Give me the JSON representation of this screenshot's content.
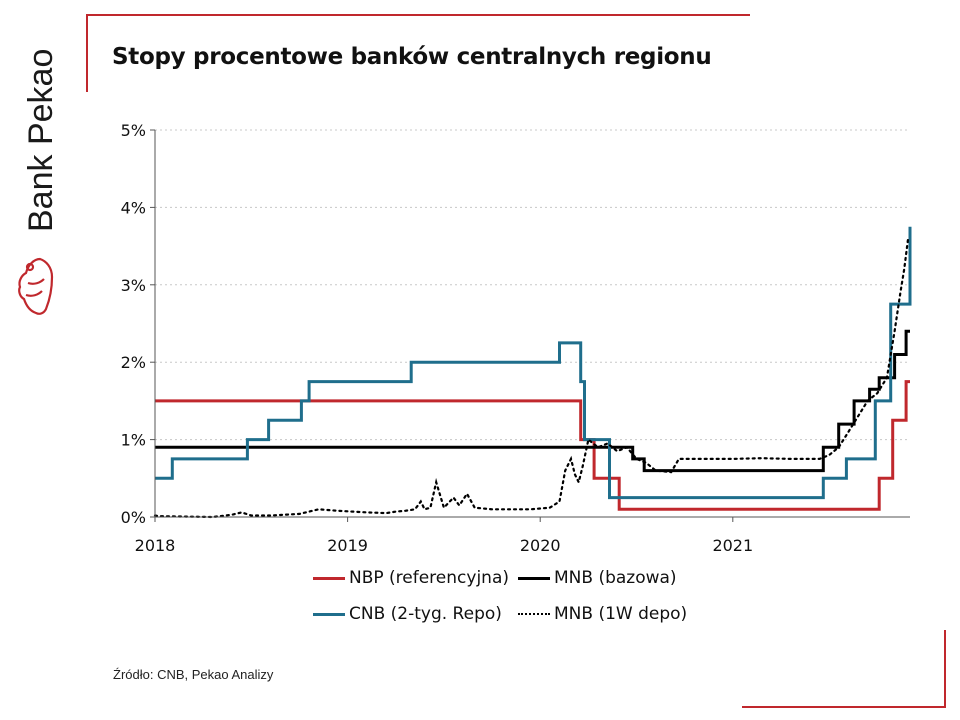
{
  "brand": {
    "name": "Bank Pekao",
    "color": "#c0282d"
  },
  "source": "Źródło: CNB, Pekao Analizy",
  "chart_data": {
    "type": "line",
    "title": "Stopy procentowe banków centralnych regionu",
    "xlabel": "",
    "ylabel": "",
    "x_ticks": [
      "2018",
      "2019",
      "2020",
      "2021"
    ],
    "x_range": [
      2018.0,
      2021.92
    ],
    "y_ticks": [
      "0%",
      "1%",
      "2%",
      "3%",
      "4%",
      "5%"
    ],
    "ylim": [
      0,
      5
    ],
    "grid": "horizontal dotted",
    "legend_position": "bottom",
    "series": [
      {
        "name": "NBP (referencyjna)",
        "color": "#c0282d",
        "style": "solid",
        "points": [
          [
            2018.0,
            1.5
          ],
          [
            2020.21,
            1.5
          ],
          [
            2020.21,
            1.0
          ],
          [
            2020.28,
            1.0
          ],
          [
            2020.28,
            0.5
          ],
          [
            2020.41,
            0.5
          ],
          [
            2020.41,
            0.1
          ],
          [
            2021.76,
            0.1
          ],
          [
            2021.76,
            0.5
          ],
          [
            2021.83,
            0.5
          ],
          [
            2021.83,
            1.25
          ],
          [
            2021.9,
            1.25
          ],
          [
            2021.9,
            1.75
          ],
          [
            2021.92,
            1.75
          ]
        ]
      },
      {
        "name": "MNB (bazowa)",
        "color": "#000000",
        "style": "solid",
        "points": [
          [
            2018.0,
            0.9
          ],
          [
            2020.48,
            0.9
          ],
          [
            2020.48,
            0.75
          ],
          [
            2020.54,
            0.75
          ],
          [
            2020.54,
            0.6
          ],
          [
            2021.47,
            0.6
          ],
          [
            2021.47,
            0.9
          ],
          [
            2021.55,
            0.9
          ],
          [
            2021.55,
            1.2
          ],
          [
            2021.63,
            1.2
          ],
          [
            2021.63,
            1.5
          ],
          [
            2021.71,
            1.5
          ],
          [
            2021.71,
            1.65
          ],
          [
            2021.76,
            1.65
          ],
          [
            2021.76,
            1.8
          ],
          [
            2021.84,
            1.8
          ],
          [
            2021.84,
            2.1
          ],
          [
            2021.9,
            2.1
          ],
          [
            2021.9,
            2.4
          ],
          [
            2021.92,
            2.4
          ]
        ]
      },
      {
        "name": "CNB (2-tyg. Repo)",
        "color": "#1f6e8c",
        "style": "solid",
        "points": [
          [
            2018.0,
            0.5
          ],
          [
            2018.09,
            0.5
          ],
          [
            2018.09,
            0.75
          ],
          [
            2018.48,
            0.75
          ],
          [
            2018.48,
            1.0
          ],
          [
            2018.59,
            1.0
          ],
          [
            2018.59,
            1.25
          ],
          [
            2018.76,
            1.25
          ],
          [
            2018.76,
            1.5
          ],
          [
            2018.8,
            1.5
          ],
          [
            2018.8,
            1.75
          ],
          [
            2019.33,
            1.75
          ],
          [
            2019.33,
            2.0
          ],
          [
            2020.1,
            2.0
          ],
          [
            2020.1,
            2.25
          ],
          [
            2020.21,
            2.25
          ],
          [
            2020.21,
            1.75
          ],
          [
            2020.23,
            1.75
          ],
          [
            2020.23,
            1.0
          ],
          [
            2020.36,
            1.0
          ],
          [
            2020.36,
            0.25
          ],
          [
            2021.47,
            0.25
          ],
          [
            2021.47,
            0.5
          ],
          [
            2021.59,
            0.5
          ],
          [
            2021.59,
            0.75
          ],
          [
            2021.74,
            0.75
          ],
          [
            2021.74,
            1.5
          ],
          [
            2021.82,
            1.5
          ],
          [
            2021.82,
            2.75
          ],
          [
            2021.92,
            2.75
          ],
          [
            2021.92,
            3.75
          ]
        ]
      },
      {
        "name": "MNB (1W depo)",
        "color": "#000000",
        "style": "dotted",
        "points": [
          [
            2018.0,
            0.02
          ],
          [
            2018.02,
            0.01
          ],
          [
            2018.3,
            0.0
          ],
          [
            2018.4,
            0.03
          ],
          [
            2018.45,
            0.06
          ],
          [
            2018.5,
            0.02
          ],
          [
            2018.6,
            0.02
          ],
          [
            2018.75,
            0.04
          ],
          [
            2018.85,
            0.1
          ],
          [
            2018.95,
            0.08
          ],
          [
            2019.1,
            0.06
          ],
          [
            2019.2,
            0.05
          ],
          [
            2019.25,
            0.07
          ],
          [
            2019.3,
            0.08
          ],
          [
            2019.35,
            0.1
          ],
          [
            2019.38,
            0.2
          ],
          [
            2019.4,
            0.1
          ],
          [
            2019.43,
            0.12
          ],
          [
            2019.46,
            0.45
          ],
          [
            2019.5,
            0.12
          ],
          [
            2019.55,
            0.25
          ],
          [
            2019.58,
            0.15
          ],
          [
            2019.62,
            0.3
          ],
          [
            2019.66,
            0.12
          ],
          [
            2019.75,
            0.1
          ],
          [
            2019.85,
            0.1
          ],
          [
            2019.95,
            0.1
          ],
          [
            2020.05,
            0.12
          ],
          [
            2020.1,
            0.2
          ],
          [
            2020.13,
            0.6
          ],
          [
            2020.16,
            0.75
          ],
          [
            2020.18,
            0.55
          ],
          [
            2020.2,
            0.45
          ],
          [
            2020.22,
            0.65
          ],
          [
            2020.25,
            1.0
          ],
          [
            2020.3,
            0.9
          ],
          [
            2020.35,
            0.95
          ],
          [
            2020.4,
            0.85
          ],
          [
            2020.45,
            0.9
          ],
          [
            2020.5,
            0.75
          ],
          [
            2020.55,
            0.7
          ],
          [
            2020.6,
            0.6
          ],
          [
            2020.68,
            0.58
          ],
          [
            2020.72,
            0.75
          ],
          [
            2020.85,
            0.75
          ],
          [
            2021.0,
            0.75
          ],
          [
            2021.15,
            0.76
          ],
          [
            2021.3,
            0.75
          ],
          [
            2021.45,
            0.75
          ],
          [
            2021.5,
            0.8
          ],
          [
            2021.55,
            0.9
          ],
          [
            2021.6,
            1.1
          ],
          [
            2021.65,
            1.3
          ],
          [
            2021.7,
            1.5
          ],
          [
            2021.75,
            1.6
          ],
          [
            2021.8,
            1.8
          ],
          [
            2021.84,
            2.4
          ],
          [
            2021.87,
            2.9
          ],
          [
            2021.89,
            3.2
          ],
          [
            2021.91,
            3.6
          ]
        ]
      }
    ]
  }
}
